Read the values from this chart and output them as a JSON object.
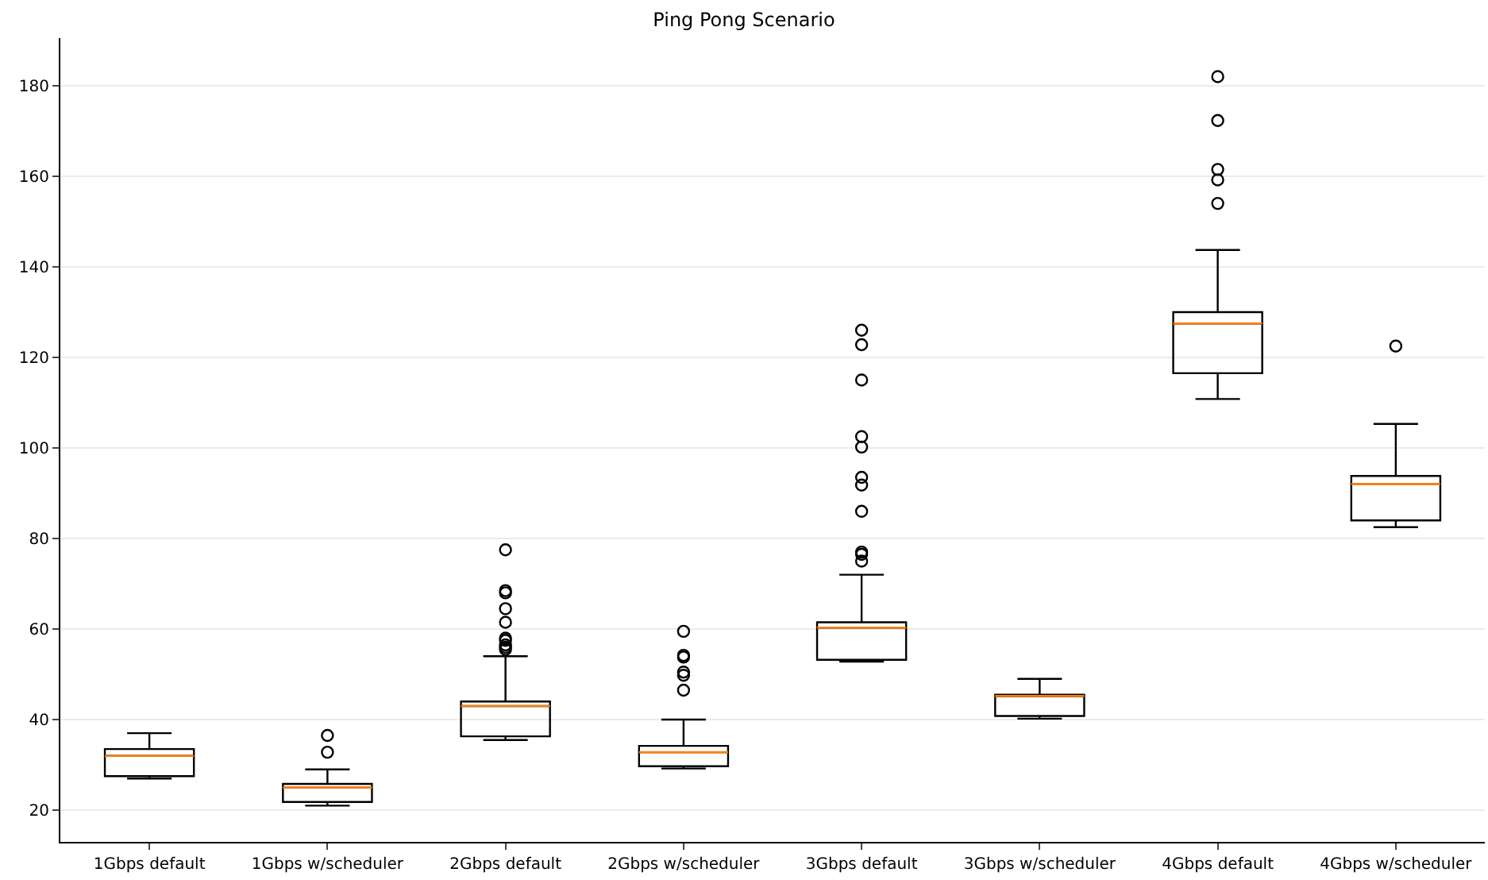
{
  "chart_data": {
    "type": "box",
    "title": "Ping Pong Scenario",
    "categories": [
      "1Gbps default",
      "1Gbps w/scheduler",
      "2Gbps default",
      "2Gbps w/scheduler",
      "3Gbps default",
      "3Gbps w/scheduler",
      "4Gbps default",
      "4Gbps w/scheduler"
    ],
    "boxes": [
      {
        "low": 27,
        "q1": 27.5,
        "median": 32,
        "q3": 33.5,
        "high": 37
      },
      {
        "low": 21,
        "q1": 21.8,
        "median": 25,
        "q3": 25.8,
        "high": 29,
        "outliers": [
          32.8,
          36.5
        ]
      },
      {
        "low": 35.5,
        "q1": 36.3,
        "median": 43,
        "q3": 44,
        "high": 54,
        "outliers": [
          55.5,
          56,
          56.5,
          57.5,
          58,
          61.5,
          64.5,
          68,
          68.5,
          77.5
        ]
      },
      {
        "low": 29.2,
        "q1": 29.7,
        "median": 32.8,
        "q3": 34.2,
        "high": 40,
        "outliers": [
          46.5,
          49.8,
          50.5,
          53.8,
          54.2,
          59.5
        ]
      },
      {
        "low": 52.8,
        "q1": 53.2,
        "median": 60.3,
        "q3": 61.5,
        "high": 72,
        "outliers": [
          75,
          76.5,
          77,
          86,
          91.8,
          93.5,
          100.2,
          102.5,
          115,
          122.8,
          126
        ]
      },
      {
        "low": 40.2,
        "q1": 40.8,
        "median": 45.2,
        "q3": 45.5,
        "high": 49
      },
      {
        "low": 110.8,
        "q1": 116.5,
        "median": 127.5,
        "q3": 130,
        "high": 143.7,
        "outliers": [
          154,
          159.2,
          161.5,
          172.3,
          182
        ]
      },
      {
        "low": 82.5,
        "q1": 84,
        "median": 92,
        "q3": 93.8,
        "high": 105.3,
        "outliers": [
          122.5
        ]
      }
    ],
    "color": "#000000",
    "ylim": [
      13,
      190.5
    ],
    "yticks": [
      20,
      40,
      60,
      80,
      100,
      120,
      140,
      160,
      180
    ],
    "grid": "y"
  }
}
